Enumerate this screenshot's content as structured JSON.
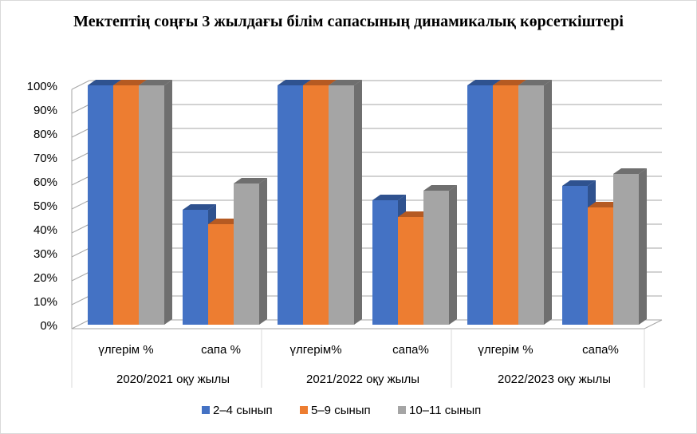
{
  "chart_data": {
    "type": "bar",
    "title": "Мектептің соңғы 3 жылдағы білім сапасының динамикалық көрсеткіштері",
    "categories": [
      "үлгерім %",
      "сапа %",
      "үлгерім%",
      "сапа%",
      "үлгерім %",
      "сапа%"
    ],
    "groups": [
      "2020/2021 оқу жылы",
      "2021/2022 оқу жылы",
      "2022/2023 оқу жылы"
    ],
    "series": [
      {
        "name": "2–4 сынып",
        "color": "#4472c4",
        "side": "#2f528f",
        "values": [
          100,
          48,
          100,
          52,
          100,
          58
        ]
      },
      {
        "name": "5–9 сынып",
        "color": "#ed7d31",
        "side": "#b55a22",
        "values": [
          100,
          42,
          100,
          45,
          100,
          49
        ]
      },
      {
        "name": "10–11 сынып",
        "color": "#a5a5a5",
        "side": "#6f6f6f",
        "values": [
          100,
          59,
          100,
          56,
          100,
          63
        ]
      }
    ],
    "yticks": [
      "0%",
      "10%",
      "20%",
      "30%",
      "40%",
      "50%",
      "60%",
      "70%",
      "80%",
      "90%",
      "100%"
    ],
    "ylim": [
      0,
      100
    ],
    "legend": "bottom",
    "grid": true
  }
}
